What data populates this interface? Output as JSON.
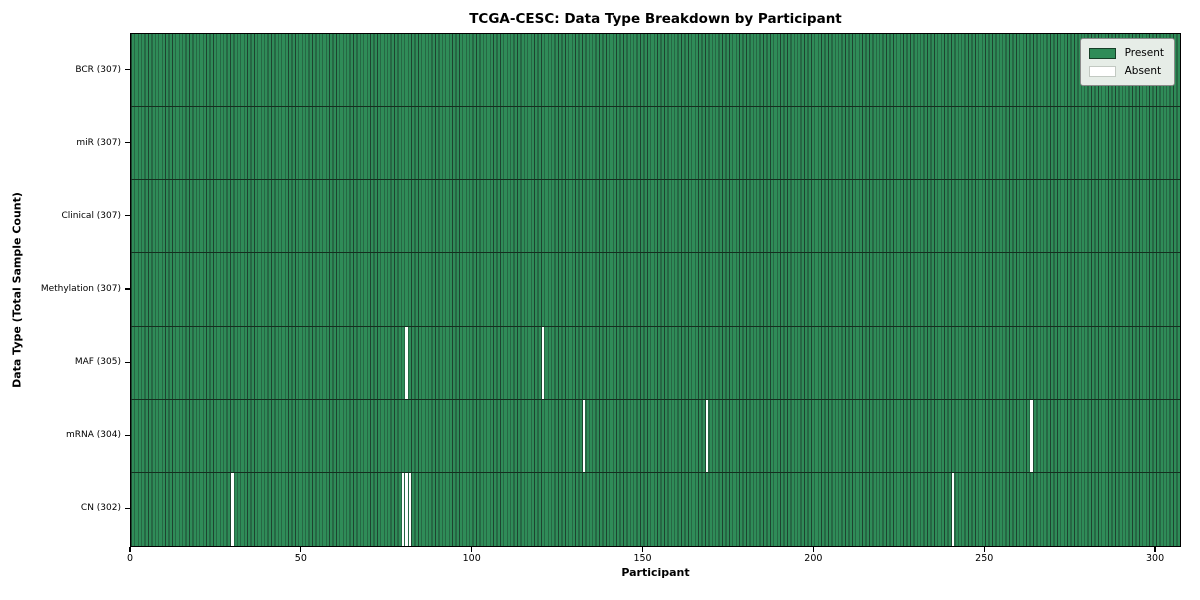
{
  "colors": {
    "present": "#2f8c58",
    "absent": "#ffffff",
    "cell_edge": "#1d4430",
    "row_separator": "#14301f",
    "axis": "#000000",
    "legend_bg": "#e6ede7"
  },
  "legend": {
    "present_label": "Present",
    "absent_label": "Absent"
  },
  "chart_data": {
    "type": "heatmap",
    "title": "TCGA-CESC: Data Type Breakdown by Participant",
    "xlabel": "Participant",
    "ylabel": "Data Type (Total Sample Count)",
    "legend_position": "upper right",
    "legend_entries": [
      "Present",
      "Absent"
    ],
    "n_participants": 307,
    "x_ticks": [
      0,
      50,
      100,
      150,
      200,
      250,
      300
    ],
    "xlim": [
      0,
      307
    ],
    "grid": false,
    "rows": [
      {
        "name": "BCR",
        "label": "BCR (307)",
        "total": 307,
        "absent_participants": []
      },
      {
        "name": "miR",
        "label": "miR (307)",
        "total": 307,
        "absent_participants": []
      },
      {
        "name": "Clinical",
        "label": "Clinical (307)",
        "total": 307,
        "absent_participants": []
      },
      {
        "name": "Methylation",
        "label": "Methylation (307)",
        "total": 307,
        "absent_participants": []
      },
      {
        "name": "MAF",
        "label": "MAF (305)",
        "total": 305,
        "absent_participants": [
          80,
          120
        ]
      },
      {
        "name": "mRNA",
        "label": "mRNA (304)",
        "total": 304,
        "absent_participants": [
          132,
          168,
          263
        ]
      },
      {
        "name": "CN",
        "label": "CN (302)",
        "total": 302,
        "absent_participants": [
          29,
          79,
          80,
          81,
          240
        ]
      }
    ]
  }
}
